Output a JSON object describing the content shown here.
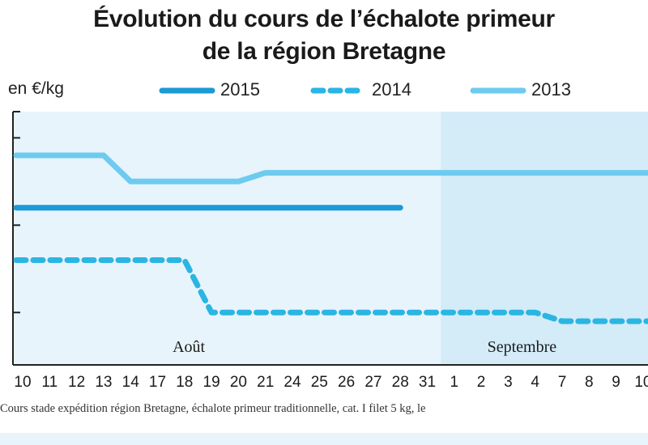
{
  "title_lines": [
    "Évolution du cours de l’échalote primeur",
    "de la région Bretagne"
  ],
  "unit_label": "en €/kg",
  "source_note": "Cours stade expédition région Bretagne, échalote primeur traditionnelle, cat. I filet 5 kg, le",
  "colors": {
    "s2015": "#1b9ad6",
    "s2014": "#2bb5e3",
    "s2013": "#6ecbef",
    "panel_aout": "#e7f4fb",
    "panel_sept": "#d3ecf8",
    "axis": "#222222"
  },
  "chart_data": {
    "type": "line",
    "title": "Évolution du cours de l’échalote primeur de la région Bretagne",
    "ylabel": "en €/kg",
    "y_tick_labels": [],
    "month_labels": [
      {
        "label": "Août",
        "category": "19"
      },
      {
        "label": "Septembre",
        "category": "6"
      }
    ],
    "categories": [
      "10",
      "11",
      "12",
      "13",
      "14",
      "17",
      "18",
      "19",
      "20",
      "21",
      "24",
      "25",
      "26",
      "27",
      "28",
      "31",
      "1",
      "2",
      "3",
      "4",
      "7",
      "8",
      "9",
      "10"
    ],
    "x_tick_labels": [
      "10",
      "11",
      "12",
      "13",
      "14",
      "17",
      "18",
      "19",
      "20",
      "21",
      "24",
      "25",
      "26",
      "27",
      "28",
      "31",
      "1",
      "2",
      "3",
      "4",
      "7",
      "8",
      "9",
      "10"
    ],
    "legend": [
      "2015",
      "2014",
      "2013"
    ],
    "legend_position": "top",
    "series": [
      {
        "name": "2015",
        "style": "solid-thick",
        "values": [
          3.1,
          3.1,
          3.1,
          3.1,
          3.1,
          3.1,
          3.1,
          3.1,
          3.1,
          3.1,
          3.1,
          3.1,
          3.1,
          3.1,
          3.1,
          null,
          null,
          null,
          null,
          null,
          null,
          null,
          null,
          null
        ]
      },
      {
        "name": "2014",
        "style": "dashed",
        "values": [
          2.5,
          2.5,
          2.5,
          2.5,
          2.5,
          2.5,
          2.5,
          1.9,
          1.9,
          1.9,
          1.9,
          1.9,
          1.9,
          1.9,
          1.9,
          1.9,
          1.9,
          1.9,
          1.9,
          1.9,
          1.8,
          1.8,
          1.8,
          1.8
        ]
      },
      {
        "name": "2013",
        "style": "solid-light",
        "values": [
          3.7,
          3.7,
          3.7,
          3.7,
          3.4,
          3.4,
          3.4,
          3.4,
          3.4,
          3.5,
          3.5,
          3.5,
          3.5,
          3.5,
          3.5,
          3.5,
          3.5,
          3.5,
          3.5,
          3.5,
          3.5,
          3.5,
          3.5,
          3.5
        ]
      }
    ],
    "grid": false
  }
}
